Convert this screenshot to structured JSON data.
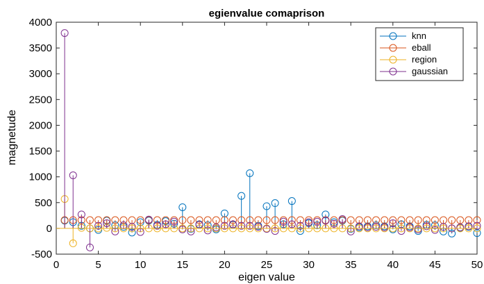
{
  "chart_data": {
    "type": "stem",
    "title": "egienvalue comaprison",
    "xlabel": "eigen value",
    "ylabel": "magnetude",
    "xlim": [
      0,
      50
    ],
    "ylim": [
      -500,
      4000
    ],
    "xticks": [
      0,
      5,
      10,
      15,
      20,
      25,
      30,
      35,
      40,
      45,
      50
    ],
    "yticks": [
      -500,
      0,
      500,
      1000,
      1500,
      2000,
      2500,
      3000,
      3500,
      4000
    ],
    "legend_position": "top-right",
    "x": [
      1,
      2,
      3,
      4,
      5,
      6,
      7,
      8,
      9,
      10,
      11,
      12,
      13,
      14,
      15,
      16,
      17,
      18,
      19,
      20,
      21,
      22,
      23,
      24,
      25,
      26,
      27,
      28,
      29,
      30,
      31,
      32,
      33,
      34,
      35,
      36,
      37,
      38,
      39,
      40,
      41,
      42,
      43,
      44,
      45,
      46,
      47,
      48,
      49,
      50
    ],
    "series": [
      {
        "name": "knn",
        "color": "#0072BD",
        "values": [
          150,
          120,
          50,
          0,
          -30,
          150,
          60,
          30,
          -80,
          120,
          150,
          70,
          140,
          90,
          410,
          -10,
          80,
          60,
          -20,
          290,
          70,
          630,
          1070,
          50,
          430,
          490,
          80,
          530,
          -50,
          100,
          60,
          270,
          120,
          150,
          -10,
          20,
          40,
          60,
          40,
          -20,
          80,
          40,
          -50,
          70,
          60,
          -60,
          -100,
          10,
          30,
          -90
        ]
      },
      {
        "name": "eball",
        "color": "#D95319",
        "values": [
          160,
          160,
          160,
          160,
          160,
          160,
          160,
          160,
          160,
          160,
          160,
          160,
          160,
          160,
          160,
          160,
          160,
          160,
          160,
          160,
          160,
          160,
          160,
          160,
          160,
          160,
          160,
          160,
          160,
          160,
          160,
          160,
          160,
          160,
          160,
          160,
          160,
          160,
          160,
          160,
          160,
          160,
          160,
          160,
          160,
          160,
          160,
          160,
          160,
          160
        ]
      },
      {
        "name": "region",
        "color": "#EDB120",
        "values": [
          570,
          -290,
          10,
          0,
          0,
          10,
          0,
          0,
          0,
          0,
          0,
          0,
          0,
          0,
          0,
          0,
          0,
          0,
          0,
          0,
          0,
          0,
          0,
          0,
          0,
          0,
          0,
          0,
          0,
          0,
          0,
          0,
          0,
          0,
          0,
          0,
          0,
          0,
          0,
          0,
          0,
          0,
          0,
          0,
          0,
          0,
          0,
          0,
          0,
          0
        ]
      },
      {
        "name": "gaussian",
        "color": "#7E2F8E",
        "values": [
          3790,
          1030,
          270,
          -370,
          50,
          100,
          -60,
          60,
          30,
          -70,
          170,
          50,
          80,
          130,
          -20,
          -60,
          70,
          -40,
          20,
          50,
          80,
          50,
          50,
          30,
          -10,
          -50,
          130,
          80,
          50,
          120,
          130,
          150,
          90,
          180,
          -60,
          40,
          20,
          30,
          20,
          100,
          -50,
          20,
          -20,
          40,
          -30,
          30,
          0,
          20,
          40,
          50
        ]
      }
    ]
  }
}
